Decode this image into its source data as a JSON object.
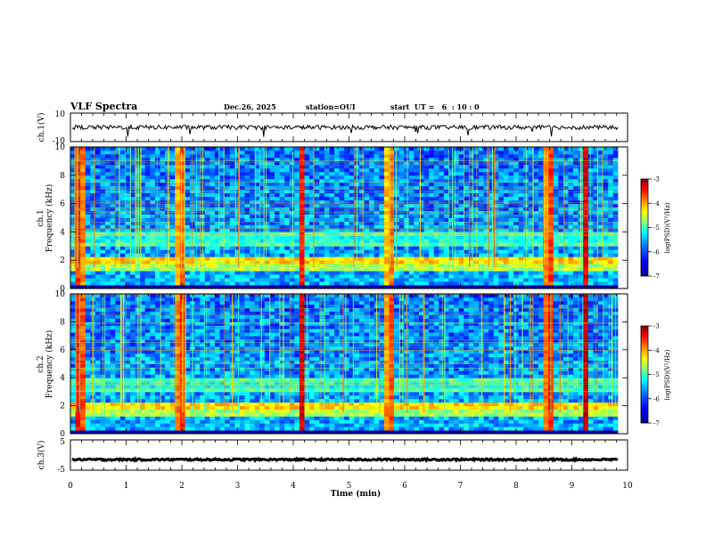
{
  "header": {
    "title": "VLF Spectra",
    "date": "Dec.26, 2025",
    "station": "station=OUI",
    "start": "start  UT =   6  : 10 : 0"
  },
  "panels": {
    "ch1v": {
      "ylabel": "ch.1(V)",
      "yticks": [
        "10",
        "-10"
      ]
    },
    "ch1": {
      "ylabel_line1": "ch.1",
      "ylabel_line2": "Frequency  (kHz)",
      "yticks": [
        "0",
        "2",
        "4",
        "6",
        "8",
        "10"
      ]
    },
    "ch2": {
      "ylabel_line1": "ch.2",
      "ylabel_line2": "Frequency  (kHz)",
      "yticks": [
        "0",
        "2",
        "4",
        "6",
        "8",
        "10"
      ]
    },
    "ch3v": {
      "ylabel": "ch.3(V)",
      "yticks": [
        "5",
        "-5"
      ]
    }
  },
  "colorbar": {
    "label": "log(PSD)(V²/Hz)",
    "ticks": [
      "-3",
      "-4",
      "-5",
      "-6",
      "-7"
    ]
  },
  "chart_data": {
    "type": "heatmap",
    "title": "VLF Spectra",
    "xlabel": "Time  (min)",
    "xlim": [
      0,
      10
    ],
    "xticks": [
      "0",
      "1",
      "2",
      "3",
      "4",
      "5",
      "6",
      "7",
      "8",
      "9",
      "10"
    ],
    "data_end_min": 9.83,
    "ylabel": "Frequency (kHz)",
    "ylim_khz": [
      0,
      10
    ],
    "clim_log_psd": [
      -7,
      -3
    ],
    "colormap": [
      "#000090",
      "#0000ff",
      "#0080ff",
      "#00ffff",
      "#80ff80",
      "#ffff00",
      "#ff8000",
      "#ff0000",
      "#800000"
    ],
    "background_level": -5.8,
    "bands_khz": [
      {
        "center": 2.0,
        "width": 0.6,
        "level": -4.6
      },
      {
        "center": 1.5,
        "width": 0.4,
        "level": -5.2
      },
      {
        "center": 3.5,
        "width": 1.0,
        "level": -5.6
      },
      {
        "center": 0.4,
        "width": 0.5,
        "level": -6.6
      }
    ],
    "bursts_min": [
      {
        "t": 0.2,
        "level": -4.2
      },
      {
        "t": 1.95,
        "level": -4.4
      },
      {
        "t": 4.15,
        "level": -3.6
      },
      {
        "t": 5.7,
        "level": -4.5
      },
      {
        "t": 8.55,
        "level": -4.3
      },
      {
        "t": 9.25,
        "level": -3.4
      }
    ],
    "ch1_waveform_v": {
      "ylim": [
        -10,
        10
      ],
      "baseline": 0,
      "noise_amplitude": 1.5
    },
    "ch3_waveform_v": {
      "ylim": [
        -5,
        5
      ],
      "baseline": -1.5,
      "noise_amplitude": 0.3
    }
  }
}
